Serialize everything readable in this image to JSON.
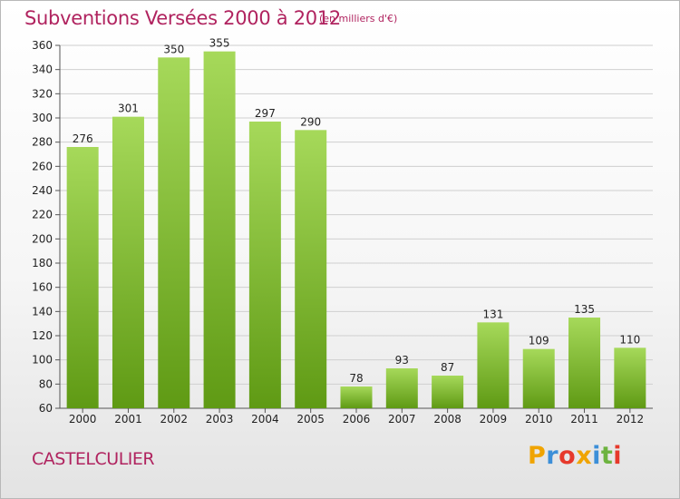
{
  "title": "Subventions Versées 2000 à 2012",
  "unit_note": "(en milliers d'€)",
  "commune": "CASTELCULIER",
  "logo": {
    "letters": [
      "P",
      "r",
      "o",
      "x",
      "i",
      "t",
      "i"
    ],
    "colors": [
      "#f0a400",
      "#3c8fd8",
      "#e6392b",
      "#f0a400",
      "#3c8fd8",
      "#6db33f",
      "#e6392b"
    ]
  },
  "colors": {
    "bar_light": "#a6d95a",
    "bar_dark": "#5f9a14",
    "grid": "#cfcfcf",
    "accent": "#b0235f"
  },
  "chart_data": {
    "type": "bar",
    "title": "Subventions Versées 2000 à 2012",
    "xlabel": "",
    "ylabel": "",
    "categories": [
      "2000",
      "2001",
      "2002",
      "2003",
      "2004",
      "2005",
      "2006",
      "2007",
      "2008",
      "2009",
      "2010",
      "2011",
      "2012"
    ],
    "values": [
      276,
      301,
      350,
      355,
      297,
      290,
      78,
      93,
      87,
      131,
      109,
      135,
      110
    ],
    "ylim": [
      60,
      360
    ],
    "yticks": [
      60,
      80,
      100,
      120,
      140,
      160,
      180,
      200,
      220,
      240,
      260,
      280,
      300,
      320,
      340,
      360
    ],
    "grid": true,
    "legend": "none"
  }
}
